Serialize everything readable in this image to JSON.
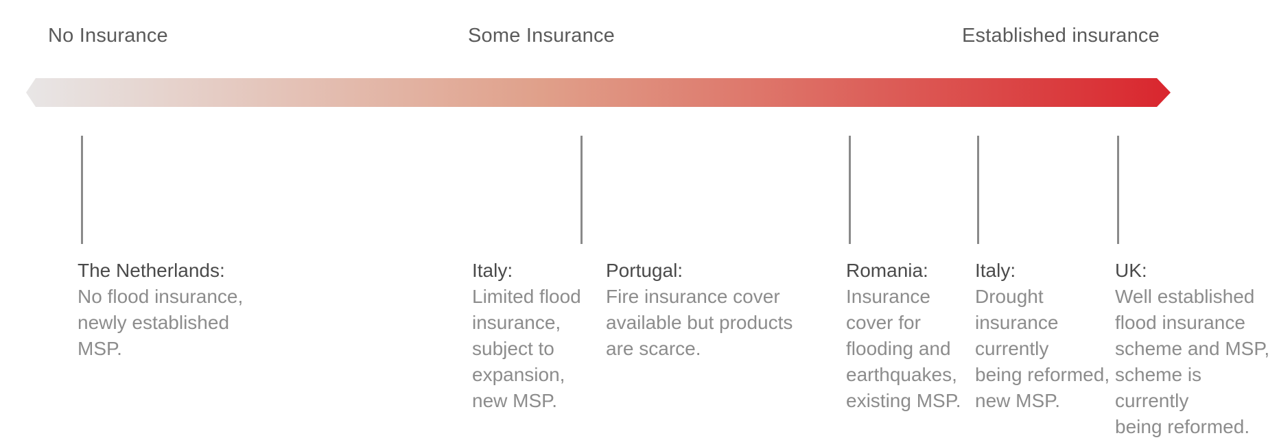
{
  "scale": {
    "low_label": "No Insurance",
    "mid_label": "Some Insurance",
    "high_label": "Established insurance",
    "gradient_start_color": "#e8e6e6",
    "gradient_mid_color": "#e0a08a",
    "gradient_end_color": "#d9262e"
  },
  "entries": [
    {
      "country": "The Netherlands:",
      "lines": [
        "No flood insurance,",
        "newly established",
        "MSP."
      ]
    },
    {
      "country": "Italy:",
      "lines": [
        "Limited flood",
        "insurance,",
        "subject to",
        "expansion,",
        "new MSP."
      ]
    },
    {
      "country": "Portugal:",
      "lines": [
        "Fire insurance cover",
        "available but products",
        "are scarce."
      ]
    },
    {
      "country": "Romania:",
      "lines": [
        "Insurance",
        "cover for",
        "flooding and",
        "earthquakes,",
        "existing MSP."
      ]
    },
    {
      "country": "Italy:",
      "lines": [
        "Drought",
        "insurance",
        "currently",
        "being reformed,",
        "new MSP."
      ]
    },
    {
      "country": "UK:",
      "lines": [
        "Well established",
        "flood insurance",
        "scheme and MSP,",
        "scheme is currently",
        "being reformed."
      ]
    }
  ]
}
